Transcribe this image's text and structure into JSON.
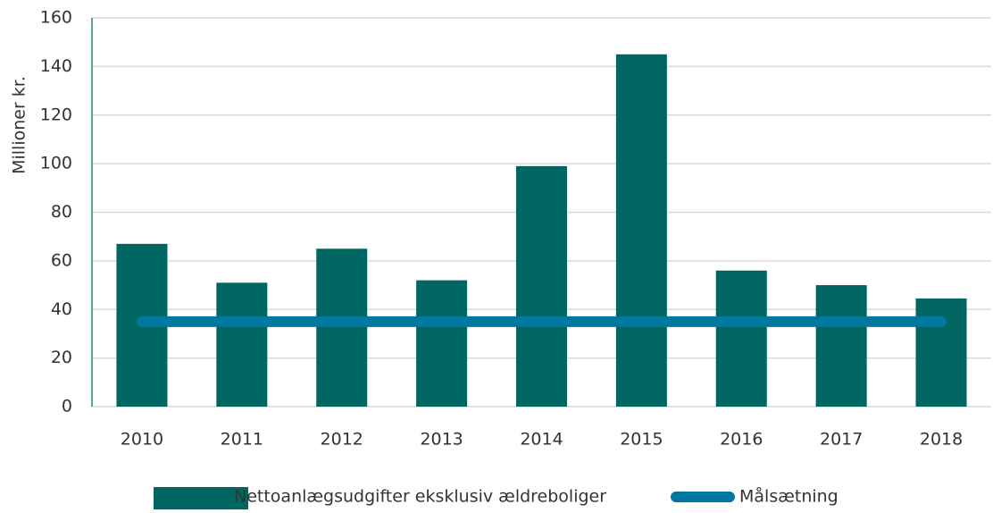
{
  "chart_data": {
    "type": "bar",
    "y_label": "Millioner kr.",
    "categories": [
      "2010",
      "2011",
      "2012",
      "2013",
      "2014",
      "2015",
      "2016",
      "2017",
      "2018"
    ],
    "series": [
      {
        "name": "Nettoanlægsudgifter eksklusiv ældreboliger",
        "type": "bar",
        "color": "#006661",
        "values": [
          67,
          51,
          65,
          52,
          99,
          145,
          56,
          50,
          44.5
        ]
      },
      {
        "name": "Målsætning",
        "type": "line",
        "color": "#0078a0",
        "values": [
          35,
          35,
          35,
          35,
          35,
          35,
          35,
          35,
          35
        ]
      }
    ],
    "ylim": [
      0,
      160
    ],
    "yticks": [
      0,
      20,
      40,
      60,
      80,
      100,
      120,
      140,
      160
    ],
    "grid": true
  }
}
